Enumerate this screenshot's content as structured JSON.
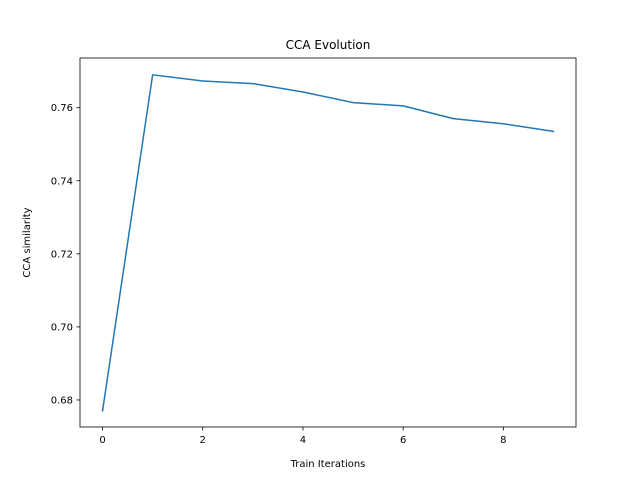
{
  "chart_data": {
    "type": "line",
    "title": "CCA Evolution",
    "xlabel": "Train Iterations",
    "ylabel": "CCA similarity",
    "xlim": [
      -0.45,
      9.45
    ],
    "ylim": [
      0.6726,
      0.7736
    ],
    "xticks": [
      0,
      2,
      4,
      6,
      8
    ],
    "yticks": [
      0.68,
      0.7,
      0.72,
      0.74,
      0.76
    ],
    "grid": false,
    "legend": "none",
    "series": [
      {
        "color": "#1f77b4",
        "x": [
          0,
          1,
          2,
          3,
          4,
          5,
          6,
          7,
          8,
          9
        ],
        "y": [
          0.677,
          0.769,
          0.7673,
          0.7666,
          0.7643,
          0.7614,
          0.7605,
          0.757,
          0.7556,
          0.7535
        ]
      }
    ]
  }
}
